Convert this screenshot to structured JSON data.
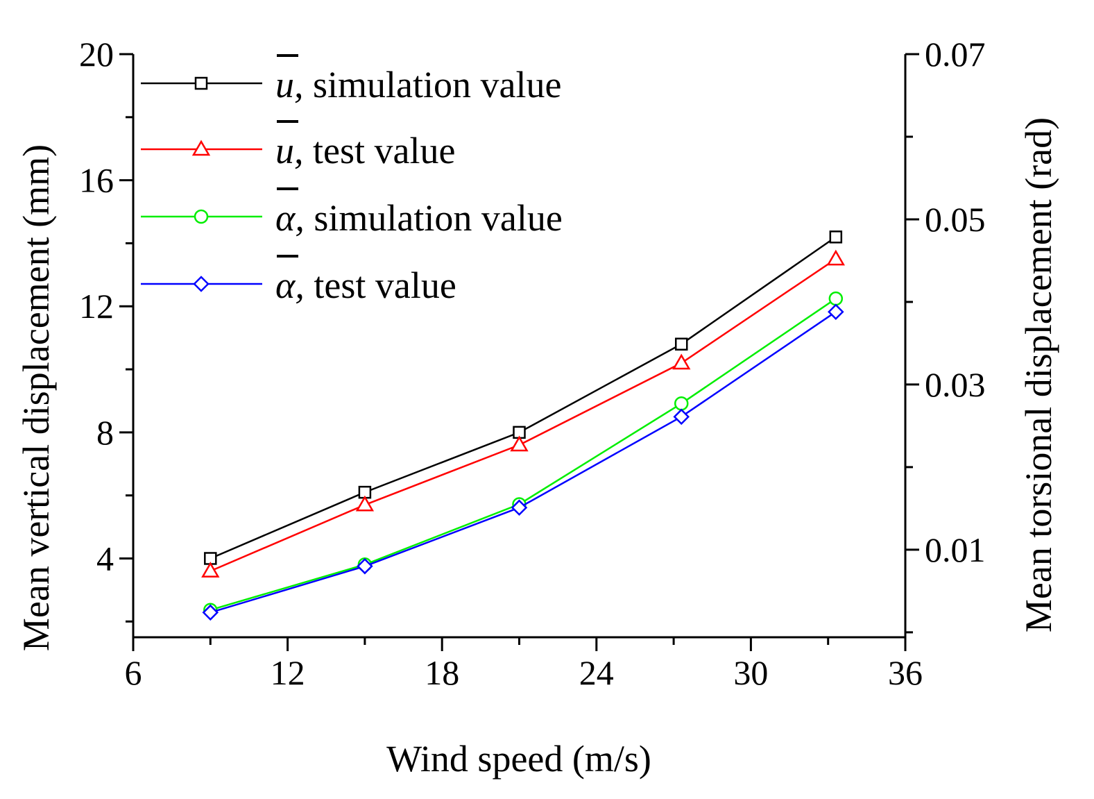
{
  "chart_data": {
    "type": "line",
    "xlabel": "Wind speed (m/s)",
    "ylabel_left": "Mean vertical displacement  (mm)",
    "ylabel_right": "Mean torsional displacement  (rad)",
    "xlim": [
      6,
      36
    ],
    "ylim_left": [
      1.5,
      20
    ],
    "ylim_right": [
      -0.0006,
      0.07
    ],
    "x_ticks": [
      6,
      12,
      18,
      24,
      30,
      36
    ],
    "x_tick_labels": [
      "6",
      "12",
      "18",
      "24",
      "30",
      "36"
    ],
    "y_left_ticks": [
      4,
      8,
      12,
      16,
      20
    ],
    "y_left_tick_labels": [
      "4",
      "8",
      "12",
      "16",
      "20"
    ],
    "y_left_minor_ticks": [
      2,
      6,
      10,
      14,
      18
    ],
    "y_right_ticks": [
      0.01,
      0.03,
      0.05,
      0.07
    ],
    "y_right_tick_labels": [
      "0.01",
      "0.03",
      "0.05",
      "0.07"
    ],
    "y_right_minor_ticks": [
      0.0,
      0.02,
      0.04,
      0.06
    ],
    "x": [
      9,
      15,
      21,
      27.3,
      33.3
    ],
    "series": [
      {
        "name": "simulation value",
        "symbol": "u",
        "axis": "left",
        "marker": "square",
        "color": "#000000",
        "values": [
          4.0,
          6.1,
          8.0,
          10.8,
          14.2
        ]
      },
      {
        "name": "test value",
        "symbol": "u",
        "axis": "left",
        "marker": "triangle",
        "color": "#ff0000",
        "values": [
          3.6,
          5.7,
          7.6,
          10.2,
          13.5
        ]
      },
      {
        "name": "simulation value",
        "symbol": "α",
        "axis": "right",
        "marker": "circle",
        "color": "#00ee00",
        "values": [
          0.0027,
          0.0082,
          0.0155,
          0.0277,
          0.0404
        ]
      },
      {
        "name": "test value",
        "symbol": "α",
        "axis": "right",
        "marker": "diamond",
        "color": "#0000ff",
        "values": [
          0.0024,
          0.008,
          0.0151,
          0.0261,
          0.0388
        ]
      }
    ],
    "legend_position": "top-left",
    "legend_separator": ", "
  }
}
